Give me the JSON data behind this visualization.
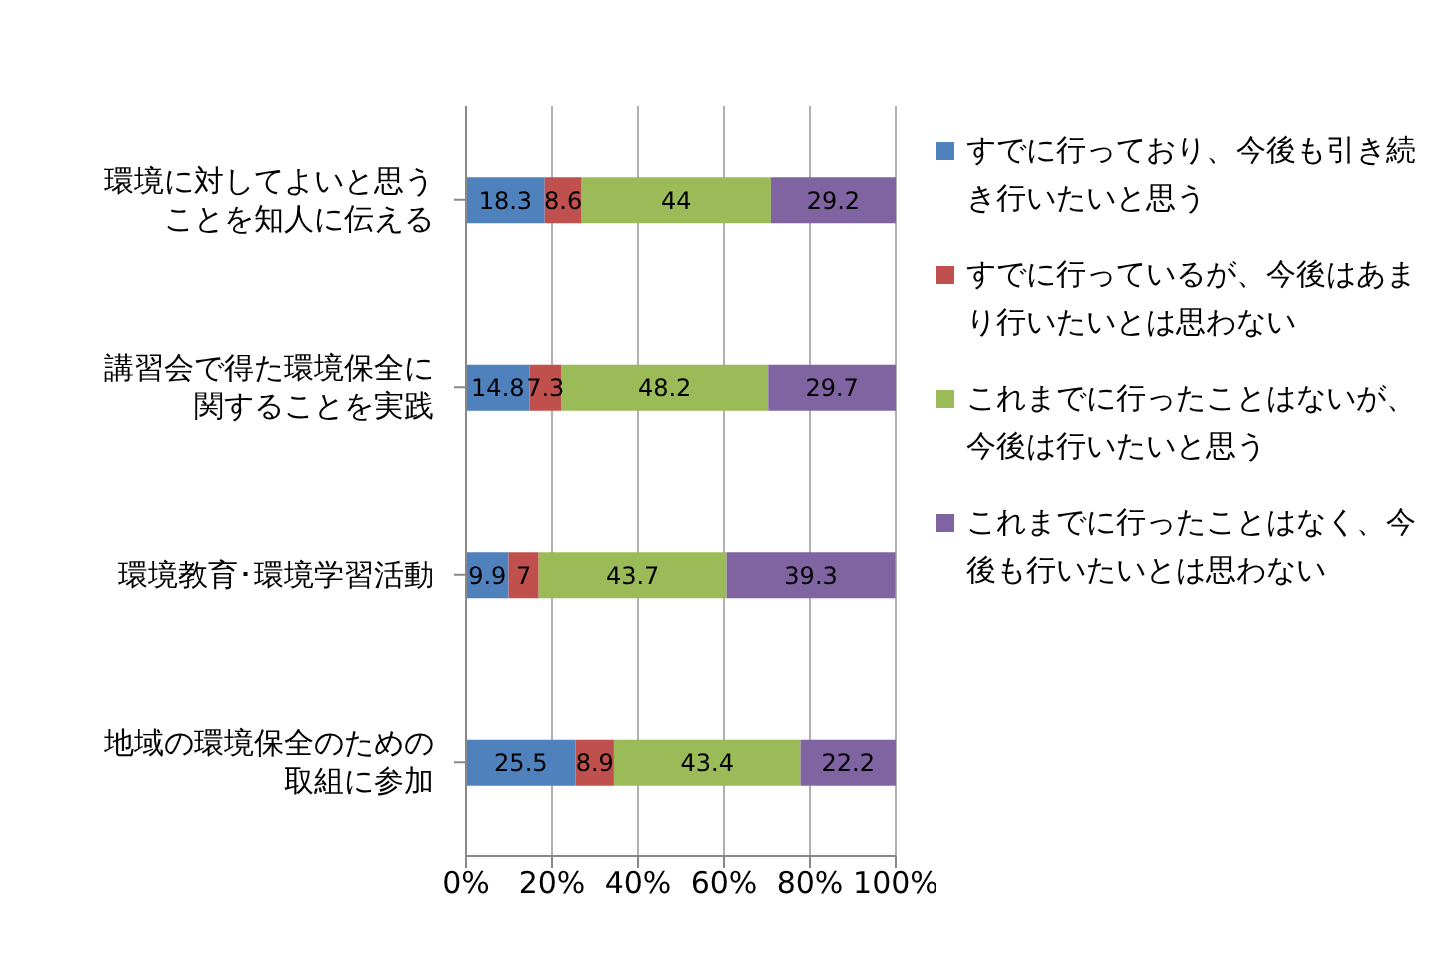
{
  "chart_data": {
    "type": "bar",
    "orientation": "horizontal",
    "stacked": true,
    "categories": [
      "環境に対してよいと思うことを知人に伝える",
      "講習会で得た環境保全に関することを実践",
      "環境教育･環境学習活動",
      "地域の環境保全のための取組に参加"
    ],
    "series": [
      {
        "name": "すでに行っており、今後も引き続き行いたいと思う",
        "color": "#4f81bd",
        "values": [
          18.3,
          14.8,
          9.9,
          25.5
        ]
      },
      {
        "name": "すでに行っているが、今後はあまり行いたいとは思わない",
        "color": "#c0504d",
        "values": [
          8.6,
          7.3,
          7,
          8.9
        ]
      },
      {
        "name": "これまでに行ったことはないが、今後は行いたいと思う",
        "color": "#9bbb59",
        "values": [
          44,
          48.2,
          43.7,
          43.4
        ]
      },
      {
        "name": "これまでに行ったことはなく、今後も行いたいとは思わない",
        "color": "#8064a2",
        "values": [
          29.2,
          29.7,
          39.3,
          22.2
        ]
      }
    ],
    "xlim": [
      0,
      100
    ],
    "xticks": [
      {
        "value": 0,
        "label": "0%"
      },
      {
        "value": 20,
        "label": "20%"
      },
      {
        "value": 40,
        "label": "40%"
      },
      {
        "value": 60,
        "label": "60%"
      },
      {
        "value": 80,
        "label": "80%"
      },
      {
        "value": 100,
        "label": "100%"
      }
    ],
    "data_labels": true,
    "grid": "x",
    "legend": "right"
  }
}
